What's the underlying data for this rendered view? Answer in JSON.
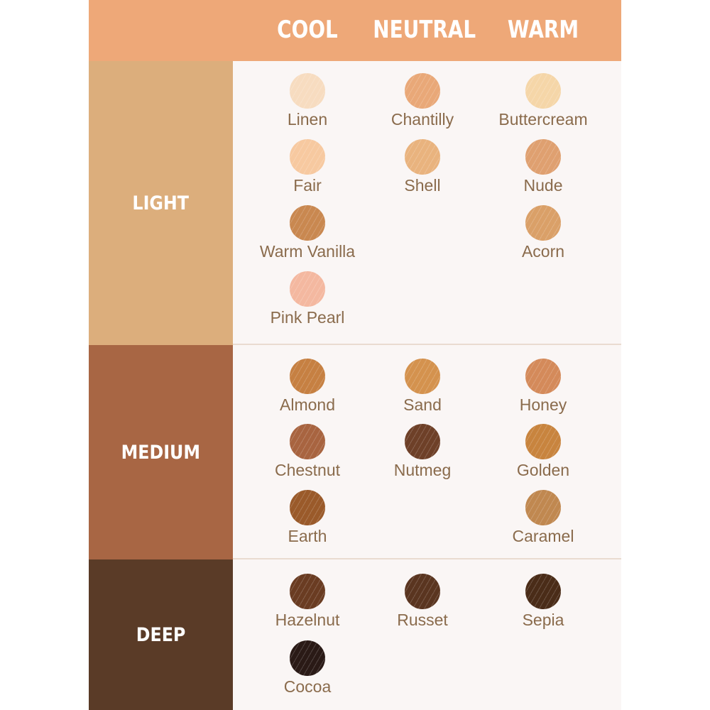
{
  "columns": [
    "COOL",
    "NEUTRAL",
    "WARM"
  ],
  "colors": {
    "header": "#eea878",
    "light": "#dcae7c",
    "medium": "#a86644",
    "deep": "#5a3b27",
    "text": "#8a6b4c",
    "panel": "#faf6f5"
  },
  "sections": [
    {
      "label": "LIGHT",
      "color": "#dcae7c",
      "rows": [
        [
          {
            "name": "Linen",
            "color": "#f7dcc0"
          },
          {
            "name": "Chantilly",
            "color": "#e9a878"
          },
          {
            "name": "Buttercream",
            "color": "#f5d6a8"
          }
        ],
        [
          {
            "name": "Fair",
            "color": "#f7c9a0"
          },
          {
            "name": "Shell",
            "color": "#e9b37e"
          },
          {
            "name": "Nude",
            "color": "#dfa070"
          }
        ],
        [
          {
            "name": "Warm Vanilla",
            "color": "#c98850"
          },
          null,
          {
            "name": "Acorn",
            "color": "#daa068"
          }
        ],
        [
          {
            "name": "Pink Pearl",
            "color": "#f4b8a0"
          },
          null,
          null
        ]
      ]
    },
    {
      "label": "MEDIUM",
      "color": "#a86644",
      "rows": [
        [
          {
            "name": "Almond",
            "color": "#c68042"
          },
          {
            "name": "Sand",
            "color": "#d4924e"
          },
          {
            "name": "Honey",
            "color": "#d48a5a"
          }
        ],
        [
          {
            "name": "Chestnut",
            "color": "#a86440"
          },
          {
            "name": "Nutmeg",
            "color": "#6e4028"
          },
          {
            "name": "Golden",
            "color": "#c8843e"
          }
        ],
        [
          {
            "name": "Earth",
            "color": "#9a5a2a"
          },
          null,
          {
            "name": "Caramel",
            "color": "#c08850"
          }
        ]
      ]
    },
    {
      "label": "DEEP",
      "color": "#5a3b27",
      "rows": [
        [
          {
            "name": "Hazelnut",
            "color": "#6a3c22"
          },
          {
            "name": "Russet",
            "color": "#5a3520"
          },
          {
            "name": "Sepia",
            "color": "#4a2c18"
          }
        ],
        [
          {
            "name": "Cocoa",
            "color": "#2a1a16"
          },
          null,
          null
        ]
      ]
    }
  ]
}
